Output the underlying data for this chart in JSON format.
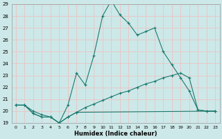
{
  "xlabel": "Humidex (Indice chaleur)",
  "background_color": "#cde8e8",
  "grid_color": "#e8c8c8",
  "line_color": "#1a7a6e",
  "xlim": [
    -0.5,
    23.5
  ],
  "ylim": [
    19,
    29
  ],
  "yticks": [
    19,
    20,
    21,
    22,
    23,
    24,
    25,
    26,
    27,
    28,
    29
  ],
  "xticks": [
    0,
    1,
    2,
    3,
    4,
    5,
    6,
    7,
    8,
    9,
    10,
    11,
    12,
    13,
    14,
    15,
    16,
    17,
    18,
    19,
    20,
    21,
    22,
    23
  ],
  "line1_x": [
    0,
    1,
    2,
    3,
    4,
    5,
    6,
    7,
    8,
    9,
    10,
    11,
    12,
    13,
    14,
    15,
    16,
    17,
    18,
    19,
    20,
    21,
    22,
    23
  ],
  "line1_y": [
    20.5,
    20.5,
    20.0,
    19.7,
    19.5,
    19.0,
    20.5,
    23.2,
    22.2,
    24.7,
    28.0,
    29.3,
    28.1,
    27.4,
    26.4,
    26.7,
    27.0,
    25.0,
    23.9,
    22.8,
    21.7,
    20.1,
    20.0,
    20.0
  ],
  "line2_x": [
    0,
    1,
    2,
    3,
    4,
    5,
    6,
    7,
    8,
    9,
    10,
    11,
    12,
    13,
    14,
    15,
    16,
    17,
    18,
    19,
    20,
    21,
    22,
    23
  ],
  "line2_y": [
    20.5,
    20.5,
    19.8,
    19.5,
    19.5,
    19.0,
    19.5,
    19.9,
    20.3,
    20.6,
    20.9,
    21.2,
    21.5,
    21.7,
    22.0,
    22.3,
    22.5,
    22.8,
    23.0,
    23.2,
    22.8,
    20.1,
    20.0,
    20.0
  ],
  "line3_x": [
    0,
    1,
    2,
    3,
    4,
    5,
    6,
    7,
    23
  ],
  "line3_y": [
    20.5,
    20.5,
    19.8,
    19.5,
    19.5,
    19.0,
    19.5,
    19.9,
    20.0
  ]
}
